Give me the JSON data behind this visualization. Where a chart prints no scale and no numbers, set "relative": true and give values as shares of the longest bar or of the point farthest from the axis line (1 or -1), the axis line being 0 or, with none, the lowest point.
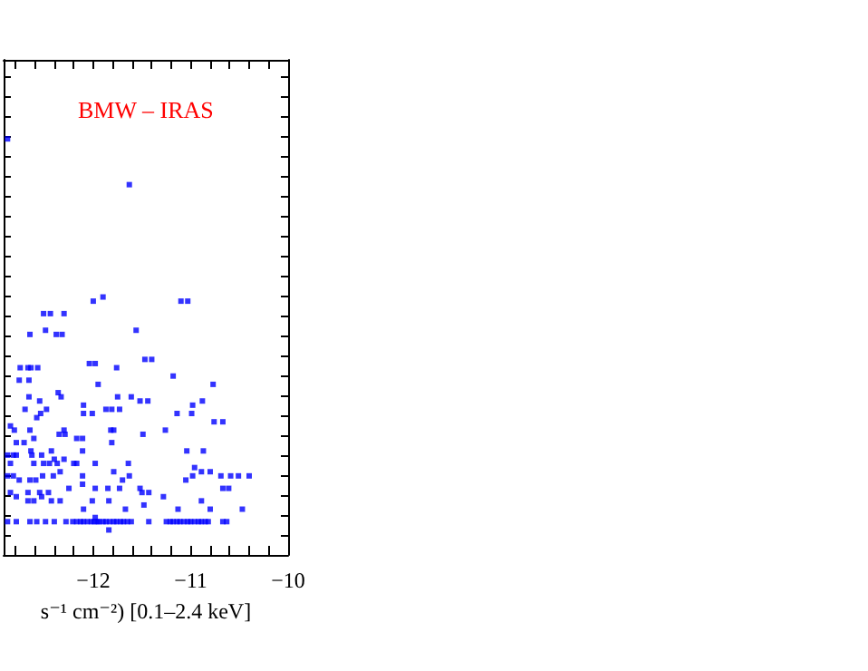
{
  "chart_data": {
    "type": "scatter",
    "title": "BMW – IRAS",
    "xlabel": "s⁻¹ cm⁻²) [0.1–2.4 keV]",
    "relative": true,
    "marker": "square",
    "grid": false,
    "xlim": [
      -12.92,
      -10
    ],
    "xticks": [
      {
        "value": -12.8,
        "label": null
      },
      {
        "value": -12.6,
        "label": null
      },
      {
        "value": -12.4,
        "label": null
      },
      {
        "value": -12.2,
        "label": null
      },
      -12,
      {
        "value": -11.8,
        "label": null
      },
      {
        "value": -11.6,
        "label": null
      },
      {
        "value": -11.4,
        "label": null
      },
      {
        "value": -11.2,
        "label": null
      },
      -11,
      {
        "value": -10.8,
        "label": null
      },
      {
        "value": -10.6,
        "label": null
      },
      {
        "value": -10.4,
        "label": null
      },
      {
        "value": -10.2,
        "label": null
      },
      -10
    ],
    "series": [
      {
        "color": "#0000ff",
        "x": [
          -12.88,
          -11.63,
          -12.0,
          -11.9,
          -11.1,
          -11.03,
          -12.51,
          -12.44,
          -12.3,
          -12.49,
          -12.38,
          -12.32,
          -12.65,
          -11.56,
          -11.47,
          -11.4,
          -12.75,
          -12.67,
          -12.64,
          -12.57,
          -12.04,
          -11.98,
          -11.76,
          -11.18,
          -12.76,
          -12.66,
          -11.95,
          -10.77,
          -12.36,
          -12.33,
          -12.66,
          -12.55,
          -12.1,
          -11.75,
          -11.61,
          -11.52,
          -11.44,
          -10.98,
          -10.88,
          -10.99,
          -11.14,
          -12.7,
          -12.58,
          -12.54,
          -12.48,
          -12.01,
          -12.1,
          -11.87,
          -11.81,
          -11.73,
          -10.76,
          -10.67,
          -12.85,
          -12.81,
          -12.65,
          -12.3,
          -12.35,
          -12.29,
          -12.17,
          -12.11,
          -11.82,
          -11.79,
          -11.49,
          -11.26,
          -12.79,
          -12.71,
          -12.61,
          -12.11,
          -11.81,
          -12.88,
          -12.82,
          -12.79,
          -12.64,
          -12.63,
          -12.53,
          -12.43,
          -12.4,
          -12.3,
          -11.04,
          -10.87,
          -12.85,
          -12.61,
          -12.51,
          -12.45,
          -12.37,
          -12.2,
          -12.17,
          -11.98,
          -11.64,
          -10.96,
          -12.88,
          -12.82,
          -12.76,
          -12.65,
          -12.59,
          -12.52,
          -12.41,
          -12.34,
          -12.11,
          -11.79,
          -11.7,
          -11.63,
          -10.98,
          -10.89,
          -10.8,
          -10.69,
          -10.59,
          -10.51,
          -10.4,
          -11.05,
          -12.85,
          -12.79,
          -12.67,
          -12.55,
          -12.46,
          -12.25,
          -12.11,
          -11.98,
          -11.85,
          -11.73,
          -11.52,
          -11.43,
          -11.5,
          -10.67,
          -10.61,
          -12.67,
          -12.61,
          -12.53,
          -12.43,
          -12.34,
          -12.1,
          -12.01,
          -11.84,
          -11.67,
          -11.48,
          -11.28,
          -11.13,
          -10.89,
          -10.8,
          -10.47,
          -12.88,
          -12.79,
          -12.65,
          -12.58,
          -12.49,
          -12.4,
          -12.28,
          -12.21,
          -12.17,
          -12.13,
          -12.1,
          -12.06,
          -12.02,
          -11.99,
          -11.96,
          -11.94,
          -11.9,
          -11.87,
          -11.83,
          -11.79,
          -11.76,
          -11.72,
          -11.69,
          -11.65,
          -11.61,
          -11.43,
          -11.25,
          -11.21,
          -11.18,
          -11.14,
          -11.11,
          -11.07,
          -11.03,
          -11.0,
          -10.96,
          -10.92,
          -10.89,
          -10.85,
          -10.82,
          -10.67,
          -10.63,
          -11.98,
          -11.84
        ],
        "values": [
          1.0,
          0.89,
          0.61,
          0.62,
          0.61,
          0.61,
          0.58,
          0.58,
          0.58,
          0.54,
          0.53,
          0.53,
          0.53,
          0.54,
          0.47,
          0.47,
          0.45,
          0.45,
          0.45,
          0.45,
          0.46,
          0.46,
          0.45,
          0.43,
          0.42,
          0.42,
          0.41,
          0.41,
          0.39,
          0.38,
          0.38,
          0.37,
          0.36,
          0.38,
          0.38,
          0.37,
          0.37,
          0.36,
          0.37,
          0.34,
          0.34,
          0.35,
          0.33,
          0.34,
          0.35,
          0.34,
          0.34,
          0.35,
          0.35,
          0.35,
          0.32,
          0.32,
          0.31,
          0.3,
          0.3,
          0.3,
          0.29,
          0.29,
          0.28,
          0.28,
          0.3,
          0.3,
          0.29,
          0.3,
          0.27,
          0.27,
          0.28,
          0.25,
          0.27,
          0.24,
          0.24,
          0.24,
          0.25,
          0.24,
          0.24,
          0.25,
          0.23,
          0.23,
          0.25,
          0.25,
          0.22,
          0.22,
          0.22,
          0.22,
          0.22,
          0.22,
          0.22,
          0.22,
          0.22,
          0.21,
          0.19,
          0.19,
          0.18,
          0.18,
          0.18,
          0.19,
          0.19,
          0.2,
          0.19,
          0.2,
          0.18,
          0.19,
          0.19,
          0.2,
          0.2,
          0.19,
          0.19,
          0.19,
          0.19,
          0.18,
          0.15,
          0.14,
          0.15,
          0.15,
          0.15,
          0.16,
          0.17,
          0.16,
          0.16,
          0.16,
          0.16,
          0.15,
          0.15,
          0.16,
          0.16,
          0.13,
          0.13,
          0.14,
          0.13,
          0.13,
          0.11,
          0.13,
          0.13,
          0.11,
          0.12,
          0.14,
          0.11,
          0.13,
          0.11,
          0.11,
          0.08,
          0.08,
          0.08,
          0.08,
          0.08,
          0.08,
          0.08,
          0.08,
          0.08,
          0.08,
          0.08,
          0.08,
          0.08,
          0.08,
          0.08,
          0.08,
          0.08,
          0.08,
          0.08,
          0.08,
          0.08,
          0.08,
          0.08,
          0.08,
          0.08,
          0.08,
          0.08,
          0.08,
          0.08,
          0.08,
          0.08,
          0.08,
          0.08,
          0.08,
          0.08,
          0.08,
          0.08,
          0.08,
          0.08,
          0.08,
          0.08,
          0.09,
          0.06
        ]
      }
    ]
  }
}
